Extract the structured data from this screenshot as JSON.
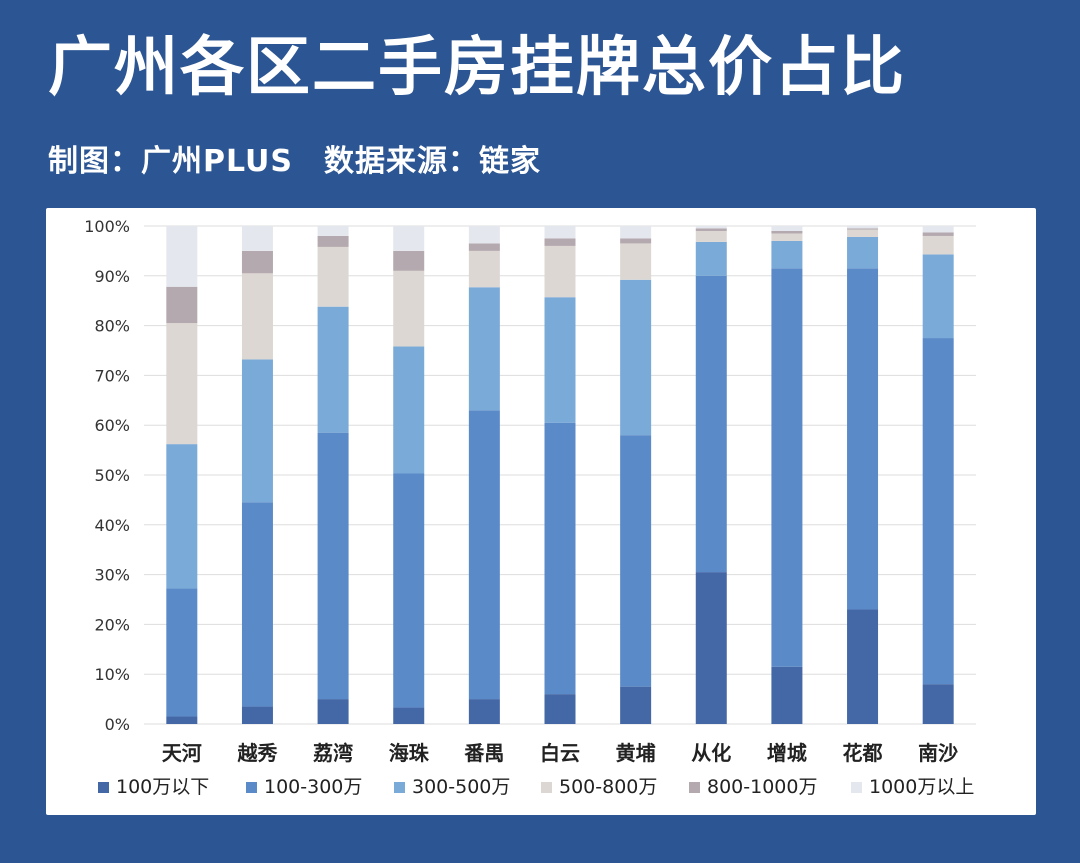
{
  "header": {
    "title": "广州各区二手房挂牌总价占比",
    "subtitle": "制图：广州PLUS　数据来源：链家"
  },
  "chart_data": {
    "type": "bar",
    "stacked": true,
    "percent": true,
    "ylim": [
      0,
      100
    ],
    "yticks": [
      "0%",
      "10%",
      "20%",
      "30%",
      "40%",
      "50%",
      "60%",
      "70%",
      "80%",
      "90%",
      "100%"
    ],
    "grid": true,
    "legend_position": "bottom",
    "categories": [
      "天河",
      "越秀",
      "荔湾",
      "海珠",
      "番禺",
      "白云",
      "黄埔",
      "从化",
      "增城",
      "花都",
      "南沙"
    ],
    "series": [
      {
        "name": "100万以下",
        "color": "#4467a6",
        "values": [
          1.5,
          3.5,
          5,
          3.3,
          5,
          6,
          7.5,
          30.5,
          11.5,
          23,
          8
        ]
      },
      {
        "name": "100-300万",
        "color": "#5b8ac8",
        "values": [
          25.7,
          41,
          53.5,
          47,
          58,
          54.5,
          50.5,
          59.5,
          80,
          68.5,
          69.5
        ]
      },
      {
        "name": "300-500万",
        "color": "#7aaad8",
        "values": [
          29,
          28.7,
          25.3,
          25.5,
          24.7,
          25.2,
          31.2,
          6.8,
          5.5,
          6.3,
          16.8
        ]
      },
      {
        "name": "500-800万",
        "color": "#dcd7d3",
        "values": [
          24.3,
          17.3,
          12,
          15.2,
          7.3,
          10.3,
          7.3,
          2.2,
          1.5,
          1.5,
          3.7
        ]
      },
      {
        "name": "800-1000万",
        "color": "#b4a9ae",
        "values": [
          7.3,
          4.5,
          2.2,
          4,
          1.5,
          1.5,
          1.0,
          0.5,
          0.5,
          0.2,
          0.7
        ]
      },
      {
        "name": "1000万以上",
        "color": "#e5e7ee",
        "values": [
          12.2,
          5,
          2,
          5,
          3.5,
          2.5,
          2.5,
          0.5,
          1,
          0.5,
          1.3
        ]
      }
    ]
  }
}
